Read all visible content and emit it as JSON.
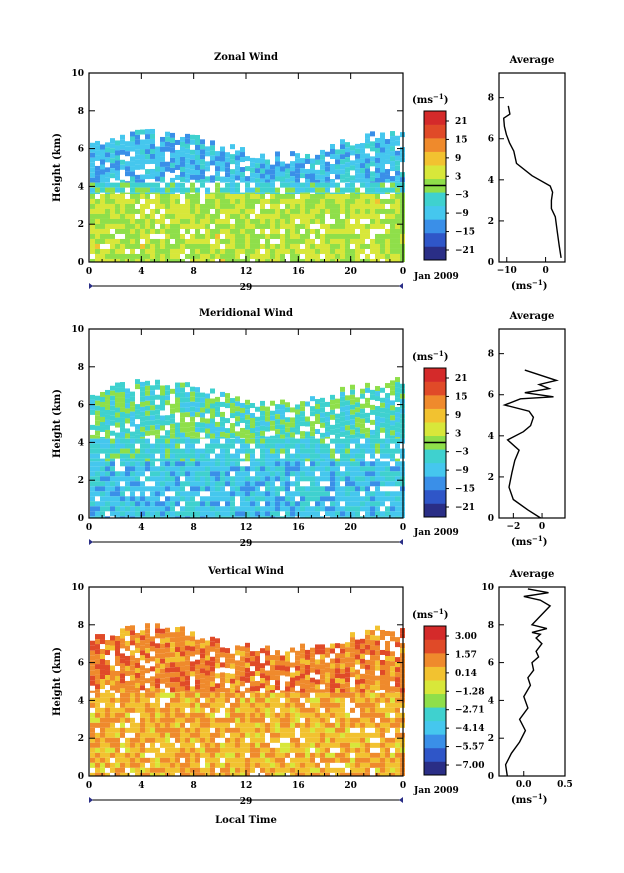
{
  "panels": [
    {
      "title": "Zonal Wind",
      "ylabel": "Height (km)",
      "day_label": "29",
      "date_label": "Jan 2009",
      "x_ticks": [
        "0",
        "4",
        "8",
        "12",
        "16",
        "20",
        "0"
      ],
      "y_ticks": [
        "0",
        "2",
        "4",
        "6",
        "8",
        "10"
      ],
      "colorbar": {
        "unit_base": "(ms",
        "unit_exp": "−1",
        "unit_end": ")",
        "labels": [
          "21",
          "15",
          "9",
          "3",
          "−3",
          "−9",
          "−15",
          "−21"
        ],
        "marker_label_index": 4
      },
      "average": {
        "title": "Average",
        "x_ticks": [
          "−10",
          "0"
        ],
        "xlabel_base": "(ms",
        "xlabel_exp": "−1",
        "xlabel_end": ")",
        "y_ticks": [
          "0",
          "2",
          "4",
          "6",
          "8"
        ]
      }
    },
    {
      "title": "Meridional Wind",
      "ylabel": "Height (km)",
      "day_label": "29",
      "date_label": "Jan 2009",
      "x_ticks": [
        "0",
        "4",
        "8",
        "12",
        "16",
        "20",
        "0"
      ],
      "y_ticks": [
        "0",
        "2",
        "4",
        "6",
        "8",
        "10"
      ],
      "colorbar": {
        "unit_base": "(ms",
        "unit_exp": "−1",
        "unit_end": ")",
        "labels": [
          "21",
          "15",
          "9",
          "3",
          "−3",
          "−9",
          "−15",
          "−21"
        ],
        "marker_label_index": 4
      },
      "average": {
        "title": "Average",
        "x_ticks": [
          "−2",
          "0"
        ],
        "xlabel_base": "(ms",
        "xlabel_exp": "−1",
        "xlabel_end": ")",
        "y_ticks": [
          "0",
          "2",
          "4",
          "6",
          "8"
        ]
      }
    },
    {
      "title": "Vertical Wind",
      "ylabel": "Height (km)",
      "day_label": "29",
      "date_label": "Jan 2009",
      "xlabel": "Local Time",
      "x_ticks": [
        "0",
        "4",
        "8",
        "12",
        "16",
        "20",
        "0"
      ],
      "y_ticks": [
        "0",
        "2",
        "4",
        "6",
        "8",
        "10"
      ],
      "colorbar": {
        "unit_base": "(ms",
        "unit_exp": "−1",
        "unit_end": ")",
        "labels": [
          "3.00",
          "1.57",
          "0.14",
          "−1.28",
          "−2.71",
          "−4.14",
          "−5.57",
          "−7.00"
        ],
        "marker_label_index": -1
      },
      "average": {
        "title": "Average",
        "x_ticks": [
          "0.0",
          "0.5"
        ],
        "xlabel_base": "(ms",
        "xlabel_exp": "−1",
        "xlabel_end": ")",
        "y_ticks": [
          "0",
          "2",
          "4",
          "6",
          "8",
          "10"
        ]
      }
    }
  ],
  "chart_data": [
    {
      "type": "heatmap",
      "title": "Zonal Wind",
      "ylabel": "Height (km)",
      "xlim": [
        0,
        24
      ],
      "ylim": [
        0,
        10
      ],
      "color_range": [
        -21,
        21
      ],
      "colors": [
        "#2a2e86",
        "#2f56c8",
        "#3a8fe8",
        "#45c7ee",
        "#3fd1cf",
        "#8fdf4a",
        "#d8e73a",
        "#f2c230",
        "#ef8a2c",
        "#e04a28",
        "#d42a2a"
      ],
      "layers": [
        {
          "top_km": 6.2,
          "bottom_km": 4.2,
          "value": -8
        },
        {
          "top_km": 4.2,
          "bottom_km": 3.6,
          "value": -4
        },
        {
          "top_km": 3.6,
          "bottom_km": 0.0,
          "value": 2
        }
      ]
    },
    {
      "type": "line",
      "title": "Average",
      "xlim": [
        -12,
        5
      ],
      "ylim": [
        0,
        9.2
      ],
      "x": [
        4,
        3.5,
        3,
        2.5,
        1.5,
        1.5,
        1.8,
        1.2,
        -3.5,
        -7.5,
        -8.2,
        -9.3,
        -10.1,
        -10.6,
        -10.8,
        -9.2,
        -9.6
      ],
      "y": [
        0.2,
        0.8,
        1.5,
        2.2,
        2.6,
        3.0,
        3.4,
        3.7,
        4.2,
        4.8,
        5.4,
        5.8,
        6.2,
        6.6,
        7.0,
        7.2,
        7.6
      ]
    },
    {
      "type": "heatmap",
      "title": "Meridional Wind",
      "ylabel": "Height (km)",
      "xlim": [
        0,
        24
      ],
      "ylim": [
        0,
        10
      ],
      "color_range": [
        -21,
        21
      ],
      "colors": [
        "#2a2e86",
        "#2f56c8",
        "#3a8fe8",
        "#45c7ee",
        "#3fd1cf",
        "#8fdf4a",
        "#d8e73a",
        "#f2c230",
        "#ef8a2c",
        "#e04a28",
        "#d42a2a"
      ],
      "layers": [
        {
          "top_km": 6.6,
          "bottom_km": 4.2,
          "value": -3
        },
        {
          "top_km": 4.2,
          "bottom_km": 3.0,
          "value": -5
        },
        {
          "top_km": 3.0,
          "bottom_km": 0.0,
          "value": -7
        }
      ]
    },
    {
      "type": "line",
      "title": "Average",
      "xlim": [
        -3,
        1.6
      ],
      "ylim": [
        0,
        9.2
      ],
      "x": [
        -0.1,
        -1.0,
        -2.0,
        -2.3,
        -2.1,
        -1.9,
        -1.6,
        -2.4,
        -1.3,
        -0.8,
        -0.6,
        -0.9,
        -2.6,
        -1.5,
        0.8,
        -1.2,
        0.5,
        -0.2,
        1.0,
        -1.2
      ],
      "y": [
        0.0,
        0.4,
        0.9,
        1.5,
        2.2,
        2.8,
        3.3,
        3.8,
        4.2,
        4.5,
        4.9,
        5.2,
        5.5,
        5.8,
        5.9,
        6.1,
        6.3,
        6.5,
        6.7,
        7.2
      ]
    },
    {
      "type": "heatmap",
      "title": "Vertical Wind",
      "xlabel": "Local Time",
      "ylabel": "Height (km)",
      "xlim": [
        0,
        24
      ],
      "ylim": [
        0,
        10
      ],
      "color_range": [
        -7.0,
        3.0
      ],
      "colors": [
        "#2a2e86",
        "#2f56c8",
        "#3a8fe8",
        "#45c7ee",
        "#3fd1cf",
        "#8fdf4a",
        "#d8e73a",
        "#f2c230",
        "#ef8a2c",
        "#e04a28",
        "#d42a2a"
      ],
      "layers": [
        {
          "top_km": 7.2,
          "bottom_km": 4.4,
          "value": 0.8
        },
        {
          "top_km": 4.4,
          "bottom_km": 0.0,
          "value": 0.1
        }
      ]
    },
    {
      "type": "line",
      "title": "Average",
      "xlim": [
        -0.3,
        0.5
      ],
      "ylim": [
        0,
        10
      ],
      "x": [
        -0.2,
        -0.22,
        -0.15,
        -0.05,
        0.02,
        -0.05,
        0.05,
        0.0,
        0.08,
        0.05,
        0.12,
        0.1,
        0.18,
        0.15,
        0.22,
        0.15,
        0.2,
        0.1,
        0.28,
        0.1,
        0.32,
        0.2,
        0.0,
        0.3,
        0.05
      ],
      "y": [
        0.0,
        0.6,
        1.2,
        1.8,
        2.4,
        3.0,
        3.6,
        4.2,
        4.8,
        5.2,
        5.6,
        6.0,
        6.3,
        6.6,
        7.0,
        7.3,
        7.5,
        7.6,
        7.8,
        8.0,
        9.0,
        9.3,
        9.5,
        9.7,
        9.9
      ]
    }
  ]
}
